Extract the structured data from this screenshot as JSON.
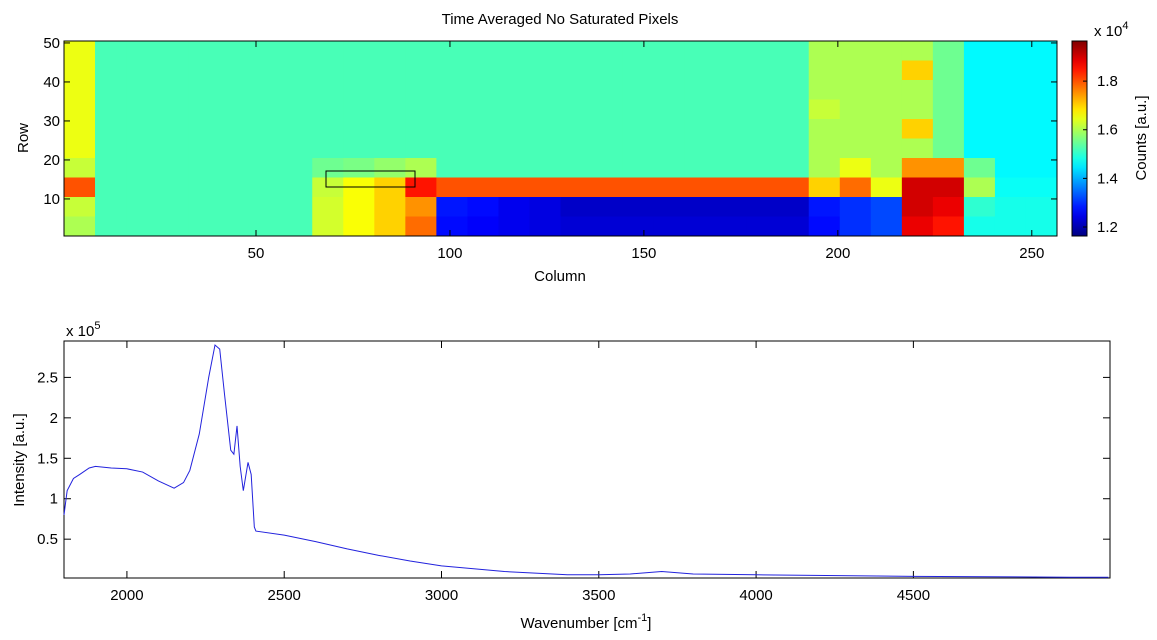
{
  "chart_data": [
    {
      "type": "heatmap",
      "title": "Time Averaged No Saturated Pixels",
      "xlabel": "Column",
      "ylabel": "Row",
      "colorbar_label": "Counts [a.u.]",
      "colorbar_multiplier": [
        "x 10",
        "4"
      ],
      "xlim": [
        0.5,
        256.5
      ],
      "xticks": [
        50,
        100,
        150,
        200,
        250
      ],
      "ylim": [
        0.5,
        50.5
      ],
      "yticks": [
        10,
        20,
        30,
        40,
        50
      ],
      "clim": [
        1.163,
        1.965
      ],
      "cticks": [
        1.2,
        1.4,
        1.6,
        1.8
      ],
      "colormap": "jet",
      "z": [
        [
          1.65,
          1.52,
          1.52,
          1.52,
          1.52,
          1.52,
          1.52,
          1.52,
          1.52,
          1.52,
          1.52,
          1.52,
          1.52,
          1.52,
          1.52,
          1.52,
          1.52,
          1.52,
          1.52,
          1.52,
          1.52,
          1.52,
          1.52,
          1.52,
          1.6,
          1.6,
          1.6,
          1.6,
          1.55,
          1.46,
          1.46,
          1.46
        ],
        [
          1.65,
          1.52,
          1.52,
          1.52,
          1.52,
          1.52,
          1.52,
          1.52,
          1.52,
          1.52,
          1.52,
          1.52,
          1.52,
          1.52,
          1.52,
          1.52,
          1.52,
          1.52,
          1.52,
          1.52,
          1.52,
          1.52,
          1.52,
          1.52,
          1.6,
          1.6,
          1.6,
          1.7,
          1.55,
          1.46,
          1.46,
          1.46
        ],
        [
          1.65,
          1.52,
          1.52,
          1.52,
          1.52,
          1.52,
          1.52,
          1.52,
          1.52,
          1.52,
          1.52,
          1.52,
          1.52,
          1.52,
          1.52,
          1.52,
          1.52,
          1.52,
          1.52,
          1.52,
          1.52,
          1.52,
          1.52,
          1.52,
          1.6,
          1.6,
          1.6,
          1.6,
          1.55,
          1.46,
          1.46,
          1.46
        ],
        [
          1.65,
          1.52,
          1.52,
          1.52,
          1.52,
          1.52,
          1.52,
          1.52,
          1.52,
          1.52,
          1.52,
          1.52,
          1.52,
          1.52,
          1.52,
          1.52,
          1.52,
          1.52,
          1.52,
          1.52,
          1.52,
          1.52,
          1.52,
          1.52,
          1.62,
          1.6,
          1.6,
          1.6,
          1.55,
          1.46,
          1.46,
          1.46
        ],
        [
          1.65,
          1.52,
          1.52,
          1.52,
          1.52,
          1.52,
          1.52,
          1.52,
          1.52,
          1.52,
          1.52,
          1.52,
          1.52,
          1.52,
          1.52,
          1.52,
          1.52,
          1.52,
          1.52,
          1.52,
          1.52,
          1.52,
          1.52,
          1.52,
          1.6,
          1.6,
          1.6,
          1.7,
          1.55,
          1.46,
          1.46,
          1.46
        ],
        [
          1.65,
          1.52,
          1.52,
          1.52,
          1.52,
          1.52,
          1.52,
          1.52,
          1.52,
          1.52,
          1.52,
          1.52,
          1.52,
          1.52,
          1.52,
          1.52,
          1.52,
          1.52,
          1.52,
          1.52,
          1.52,
          1.52,
          1.52,
          1.52,
          1.6,
          1.6,
          1.6,
          1.6,
          1.55,
          1.46,
          1.46,
          1.46
        ],
        [
          1.62,
          1.52,
          1.52,
          1.52,
          1.52,
          1.52,
          1.52,
          1.52,
          1.55,
          1.56,
          1.58,
          1.6,
          1.52,
          1.52,
          1.52,
          1.52,
          1.52,
          1.52,
          1.52,
          1.52,
          1.52,
          1.52,
          1.52,
          1.52,
          1.6,
          1.65,
          1.6,
          1.75,
          1.75,
          1.55,
          1.46,
          1.46
        ],
        [
          1.8,
          1.52,
          1.52,
          1.52,
          1.52,
          1.52,
          1.52,
          1.52,
          1.62,
          1.66,
          1.7,
          1.85,
          1.8,
          1.8,
          1.8,
          1.8,
          1.8,
          1.8,
          1.8,
          1.8,
          1.8,
          1.8,
          1.8,
          1.8,
          1.7,
          1.78,
          1.65,
          1.9,
          1.9,
          1.6,
          1.47,
          1.47
        ],
        [
          1.62,
          1.52,
          1.52,
          1.52,
          1.52,
          1.52,
          1.52,
          1.52,
          1.63,
          1.66,
          1.7,
          1.75,
          1.28,
          1.27,
          1.25,
          1.24,
          1.22,
          1.22,
          1.22,
          1.22,
          1.22,
          1.22,
          1.22,
          1.22,
          1.28,
          1.3,
          1.32,
          1.9,
          1.88,
          1.5,
          1.48,
          1.48
        ],
        [
          1.6,
          1.52,
          1.52,
          1.52,
          1.52,
          1.52,
          1.52,
          1.52,
          1.63,
          1.66,
          1.7,
          1.78,
          1.27,
          1.26,
          1.25,
          1.24,
          1.23,
          1.23,
          1.23,
          1.23,
          1.23,
          1.23,
          1.23,
          1.23,
          1.27,
          1.3,
          1.32,
          1.88,
          1.85,
          1.48,
          1.48,
          1.48
        ]
      ]
    },
    {
      "type": "line",
      "xlabel": [
        "Wavenumber [cm",
        "-1",
        "]"
      ],
      "ylabel": "Intensity [a.u.]",
      "y_multiplier": [
        "x 10",
        "5"
      ],
      "xlim": [
        1800,
        5125
      ],
      "xticks": [
        2000,
        2500,
        3000,
        3500,
        4000,
        4500
      ],
      "ylim": [
        0.02,
        2.95
      ],
      "yticks": [
        0.5,
        1,
        1.5,
        2,
        2.5
      ],
      "x": [
        1800,
        1810,
        1830,
        1850,
        1880,
        1900,
        1950,
        2000,
        2050,
        2100,
        2150,
        2180,
        2200,
        2230,
        2260,
        2280,
        2295,
        2310,
        2330,
        2340,
        2350,
        2360,
        2370,
        2385,
        2395,
        2405,
        2410,
        2500,
        2600,
        2700,
        2800,
        2900,
        3000,
        3200,
        3400,
        3500,
        3600,
        3700,
        3800,
        4000,
        4500,
        5000,
        5120
      ],
      "series": [
        {
          "color": "#2222dd",
          "values": [
            0.8,
            1.1,
            1.25,
            1.3,
            1.38,
            1.4,
            1.38,
            1.37,
            1.33,
            1.22,
            1.13,
            1.2,
            1.35,
            1.8,
            2.5,
            2.9,
            2.85,
            2.3,
            1.6,
            1.55,
            1.9,
            1.4,
            1.1,
            1.45,
            1.3,
            0.65,
            0.6,
            0.55,
            0.47,
            0.38,
            0.3,
            0.23,
            0.17,
            0.1,
            0.06,
            0.06,
            0.07,
            0.1,
            0.07,
            0.06,
            0.04,
            0.03,
            0.03
          ]
        }
      ]
    }
  ]
}
